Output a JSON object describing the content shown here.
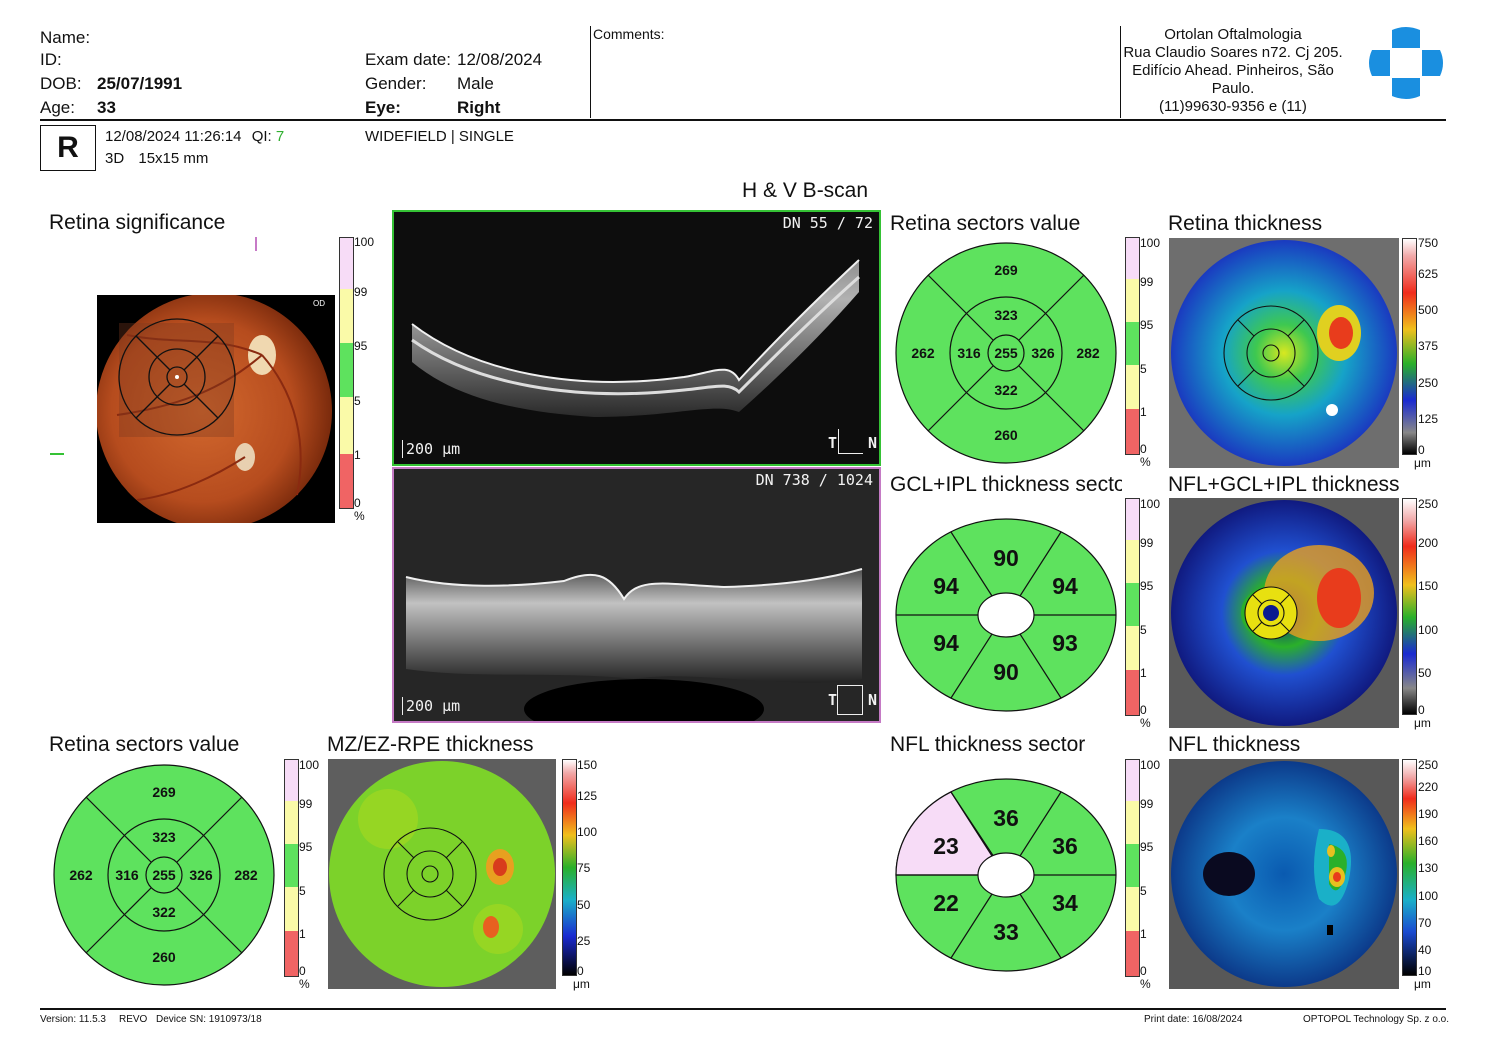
{
  "patient": {
    "name_label": "Name:",
    "id_label": "ID:",
    "dob_label": "DOB:",
    "dob": "25/07/1991",
    "age_label": "Age:",
    "age": "33"
  },
  "exam": {
    "date_label": "Exam date:",
    "date": "12/08/2024",
    "gender_label": "Gender:",
    "gender": "Male",
    "eye_label": "Eye:",
    "eye": "Right"
  },
  "comments_label": "Comments:",
  "clinic": {
    "line1": "Ortolan Oftalmologia",
    "line2": "Rua Claudio Soares n72. Cj 205.",
    "line3": "Edifício Ahead. Pinheiros, São",
    "line4": "Paulo.",
    "line5": "(11)99630-9356 e (11)"
  },
  "scan": {
    "eye_letter": "R",
    "datetime": "12/08/2024 11:26:14",
    "qi_label": "QI:",
    "qi_value": "7",
    "type": "3D",
    "size": "15x15 mm",
    "mode": "WIDEFIELD | SINGLE"
  },
  "titles": {
    "bscan": "H & V B-scan",
    "retina_significance": "Retina significance",
    "retina_sectors_value": "Retina sectors value",
    "retina_thickness": "Retina thickness",
    "gcl_sector": "GCL+IPL thickness sector",
    "nfl_gcl_thickness": "NFL+GCL+IPL thickness",
    "retina_sectors_value_2": "Retina sectors value",
    "mz_thickness": "MZ/EZ-RPE thickness",
    "nfl_sector": "NFL thickness sector",
    "nfl_thickness": "NFL thickness"
  },
  "fundus": {
    "eye_tag": "OD"
  },
  "bscan_h": {
    "dn": "DN  55 / 72",
    "scale": "200 μm",
    "t": "T",
    "n": "N"
  },
  "bscan_v": {
    "dn": "DN  738 / 1024",
    "scale": "200 μm",
    "t": "T",
    "n": "N"
  },
  "sig_scale": {
    "labels": [
      "100",
      "99",
      "95",
      "5",
      "1",
      "0"
    ],
    "unit": "%"
  },
  "retina_thick_scale": {
    "labels": [
      "750",
      "625",
      "500",
      "375",
      "250",
      "125",
      "0"
    ],
    "unit": "μm"
  },
  "nfl_gcl_scale": {
    "labels": [
      "250",
      "200",
      "150",
      "100",
      "50",
      "0"
    ],
    "unit": "μm"
  },
  "mz_scale": {
    "labels": [
      "150",
      "125",
      "100",
      "75",
      "50",
      "25",
      "0"
    ],
    "unit": "μm"
  },
  "nfl_scale": {
    "labels": [
      "250",
      "220",
      "190",
      "160",
      "130",
      "100",
      "70",
      "40",
      "10"
    ],
    "unit": "μm"
  },
  "retina_sectors": {
    "center": "255",
    "inner_sup": "323",
    "inner_inf": "322",
    "inner_left": "316",
    "inner_right": "326",
    "outer_sup": "269",
    "outer_inf": "260",
    "outer_left": "262",
    "outer_right": "282"
  },
  "gcl_sectors": {
    "top": "90",
    "bottom": "90",
    "ul": "94",
    "ur": "94",
    "ll": "94",
    "lr": "93"
  },
  "nfl_sectors": {
    "top": "36",
    "bottom": "33",
    "ul": "23",
    "ur": "36",
    "ll": "22",
    "lr": "34"
  },
  "colors": {
    "normal_green": "#5ee25e",
    "pink": "#f7dcf7",
    "yellow": "#fafaa8",
    "red": "#f06464",
    "bscan_h_frame": "#35c235",
    "bscan_v_frame": "#c57ac5"
  },
  "footer": {
    "version": "Version: 11.5.3",
    "model": "REVO",
    "device": "Device SN: 1910973/18",
    "print_date": "Print date: 16/08/2024",
    "company": "OPTOPOL Technology Sp. z o.o."
  }
}
